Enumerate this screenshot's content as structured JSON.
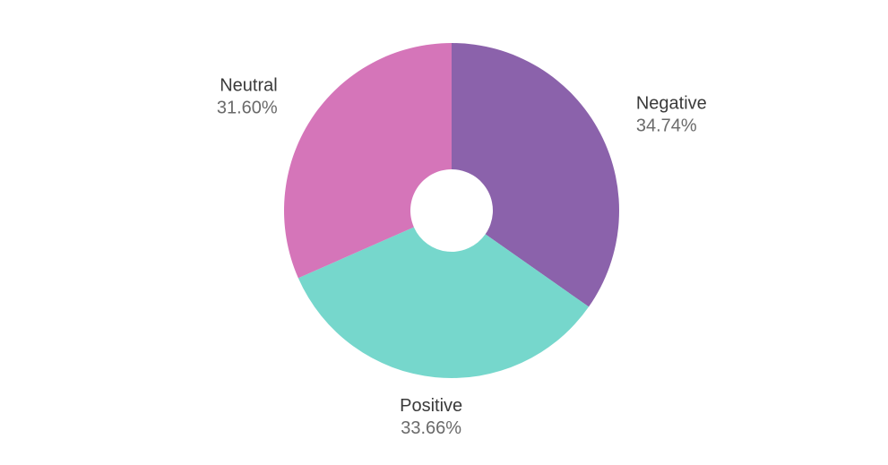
{
  "chart_data": {
    "type": "donut",
    "categories": [
      "Negative",
      "Positive",
      "Neutral"
    ],
    "values": [
      34.74,
      33.66,
      31.6
    ],
    "value_labels": [
      "34.74%",
      "33.66%",
      "31.60%"
    ],
    "colors": [
      "#8b62ab",
      "#76d7cc",
      "#d575b9"
    ]
  }
}
